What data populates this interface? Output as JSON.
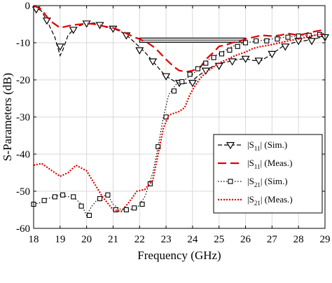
{
  "chart_data": {
    "type": "line",
    "xlabel": "Frequency (GHz)",
    "ylabel": "S-Parameters (dB)",
    "xlim": [
      18,
      29
    ],
    "ylim": [
      -60,
      0
    ],
    "xticks": [
      "18",
      "19",
      "20",
      "21",
      "22",
      "23",
      "24",
      "25",
      "26",
      "27",
      "28",
      "29"
    ],
    "yticks": [
      "0",
      "-10",
      "-20",
      "-30",
      "-40",
      "-50",
      "-60"
    ],
    "grid": true,
    "legend_position": "lower-right",
    "bandwidth_bar": {
      "x": [
        22,
        26
      ],
      "y": -9.5
    },
    "series": [
      {
        "name": "|S11| (Sim.)",
        "legend_main": "|S",
        "legend_sub": "11",
        "legend_rest": "| (Sim.)",
        "color": "#000000",
        "dash": "6,3",
        "marker": "triangle-down",
        "x": [
          18.0,
          18.3,
          18.5,
          18.8,
          19.0,
          19.1,
          19.3,
          19.5,
          19.7,
          20.0,
          20.3,
          20.5,
          20.8,
          21.0,
          21.3,
          21.6,
          21.9,
          22.2,
          22.5,
          22.8,
          23.0,
          23.3,
          23.6,
          23.9,
          24.2,
          24.5,
          24.8,
          25.1,
          25.4,
          25.7,
          26.0,
          26.3,
          26.6,
          27.0,
          27.4,
          27.8,
          28.2,
          28.6,
          29.0
        ],
        "y": [
          0.0,
          -1.5,
          -4.0,
          -8.5,
          -13.5,
          -12.0,
          -8.0,
          -6.5,
          -5.5,
          -4.8,
          -4.7,
          -5.2,
          -6.0,
          -6.2,
          -7.0,
          -8.5,
          -10.5,
          -12.5,
          -15.0,
          -17.5,
          -19.0,
          -20.3,
          -21.0,
          -20.8,
          -19.0,
          -17.5,
          -16.2,
          -15.5,
          -15.0,
          -14.5,
          -14.3,
          -14.8,
          -14.8,
          -13.0,
          -11.0,
          -10.0,
          -9.5,
          -9.0,
          -8.2
        ],
        "markers_x": [
          18.1,
          18.5,
          19.0,
          19.5,
          20.0,
          20.5,
          21.0,
          21.5,
          22.0,
          22.5,
          23.0,
          23.5,
          24.0,
          24.5,
          25.0,
          25.5,
          26.0,
          26.5,
          27.0,
          27.5,
          28.0,
          28.5,
          29.0
        ],
        "markers_y": [
          -1.0,
          -4.0,
          -11.0,
          -6.5,
          -4.8,
          -5.2,
          -6.2,
          -8.0,
          -12.0,
          -15.0,
          -19.0,
          -20.8,
          -20.8,
          -17.5,
          -16.2,
          -15.0,
          -14.3,
          -14.8,
          -13.0,
          -11.0,
          -9.5,
          -9.5,
          -8.5
        ]
      },
      {
        "name": "|S11| (Meas.)",
        "legend_main": "|S",
        "legend_sub": "11",
        "legend_rest": "| (Meas.)",
        "color": "#e00000",
        "dash": "12,6",
        "marker": "none",
        "x": [
          18.0,
          18.3,
          18.5,
          18.7,
          19.0,
          19.3,
          19.5,
          19.8,
          20.0,
          20.3,
          20.6,
          21.0,
          21.3,
          21.5,
          21.8,
          22.0,
          22.3,
          22.6,
          22.8,
          23.0,
          23.3,
          23.5,
          23.8,
          24.0,
          24.3,
          24.5,
          24.8,
          25.0,
          25.3,
          25.5,
          25.8,
          26.0,
          26.3,
          26.6,
          27.0,
          27.3,
          27.6,
          28.0,
          28.3,
          28.6,
          29.0
        ],
        "y": [
          0.0,
          -1.0,
          -3.0,
          -4.5,
          -6.0,
          -5.5,
          -5.2,
          -5.0,
          -4.8,
          -5.0,
          -5.5,
          -6.0,
          -6.8,
          -7.5,
          -8.5,
          -9.0,
          -10.0,
          -11.5,
          -13.0,
          -14.5,
          -16.5,
          -17.5,
          -17.8,
          -17.5,
          -16.5,
          -14.5,
          -12.5,
          -11.0,
          -10.5,
          -10.0,
          -9.5,
          -9.0,
          -8.5,
          -8.0,
          -8.2,
          -8.0,
          -7.5,
          -8.0,
          -7.5,
          -7.0,
          -6.5
        ]
      },
      {
        "name": "|S21| (Sim.)",
        "legend_main": "|S",
        "legend_sub": "21",
        "legend_rest": "| (Sim.)",
        "color": "#000000",
        "dash": "1.5,2.5",
        "marker": "square",
        "x": [
          18.0,
          18.3,
          18.5,
          18.8,
          19.0,
          19.3,
          19.5,
          19.8,
          20.0,
          20.2,
          20.5,
          20.8,
          21.0,
          21.3,
          21.6,
          21.9,
          22.2,
          22.5,
          22.7,
          22.9,
          23.1,
          23.4,
          23.7,
          24.0,
          24.3,
          24.6,
          25.0,
          25.5,
          26.0,
          26.5,
          27.0,
          27.5,
          28.0,
          28.5,
          29.0
        ],
        "y": [
          -53.5,
          -53.0,
          -52.0,
          -51.5,
          -51.0,
          -51.5,
          -51.5,
          -53.5,
          -56.5,
          -54.0,
          -51.5,
          -51.0,
          -53.5,
          -55.0,
          -55.0,
          -54.5,
          -51.5,
          -45.0,
          -38.0,
          -30.0,
          -24.0,
          -21.0,
          -20.0,
          -18.5,
          -16.5,
          -14.5,
          -13.0,
          -11.0,
          -10.0,
          -9.5,
          -9.0,
          -8.5,
          -8.2,
          -8.0,
          -7.8
        ],
        "markers_x": [
          18.0,
          18.4,
          18.8,
          19.1,
          19.5,
          19.8,
          20.1,
          20.5,
          20.8,
          21.1,
          21.5,
          21.8,
          22.1,
          22.4,
          22.7,
          23.0,
          23.3,
          23.6,
          23.9,
          24.2,
          24.5,
          24.8,
          25.1,
          25.4,
          25.7,
          26.0,
          26.4,
          26.8,
          27.2,
          27.6,
          28.0,
          28.4,
          28.8
        ],
        "markers_y": [
          -53.5,
          -52.5,
          -51.5,
          -51.0,
          -51.5,
          -54.0,
          -56.5,
          -52.0,
          -51.0,
          -55.0,
          -55.0,
          -54.5,
          -53.5,
          -48.0,
          -38.0,
          -30.0,
          -23.0,
          -20.5,
          -18.5,
          -17.0,
          -15.5,
          -14.0,
          -13.0,
          -12.0,
          -11.0,
          -10.0,
          -9.5,
          -9.5,
          -9.0,
          -8.5,
          -8.2,
          -8.0,
          -7.8
        ]
      },
      {
        "name": "|S21| (Meas.)",
        "legend_main": "|S",
        "legend_sub": "21",
        "legend_rest": "|  (Meas.)",
        "color": "#e00000",
        "dash": "2,2",
        "marker": "none",
        "x": [
          18.0,
          18.3,
          18.6,
          19.0,
          19.3,
          19.6,
          20.0,
          20.3,
          20.6,
          21.0,
          21.3,
          21.6,
          21.9,
          22.2,
          22.5,
          22.7,
          22.9,
          23.1,
          23.3,
          23.5,
          23.7,
          23.9,
          24.1,
          24.3,
          24.5,
          24.8,
          25.0,
          25.3,
          25.6,
          26.0,
          26.3,
          26.6,
          27.0,
          27.3,
          27.6,
          28.0,
          28.3,
          28.6,
          29.0
        ],
        "y": [
          -43.0,
          -42.5,
          -44.0,
          -46.0,
          -45.0,
          -43.0,
          -44.5,
          -48.0,
          -51.5,
          -55.0,
          -55.5,
          -53.0,
          -50.0,
          -49.5,
          -47.0,
          -40.0,
          -33.0,
          -29.5,
          -29.0,
          -28.5,
          -27.5,
          -24.0,
          -21.5,
          -19.5,
          -18.0,
          -16.5,
          -15.5,
          -14.5,
          -13.5,
          -12.5,
          -11.5,
          -11.0,
          -10.5,
          -10.0,
          -9.5,
          -9.0,
          -8.5,
          -8.0,
          -7.5
        ]
      }
    ]
  }
}
